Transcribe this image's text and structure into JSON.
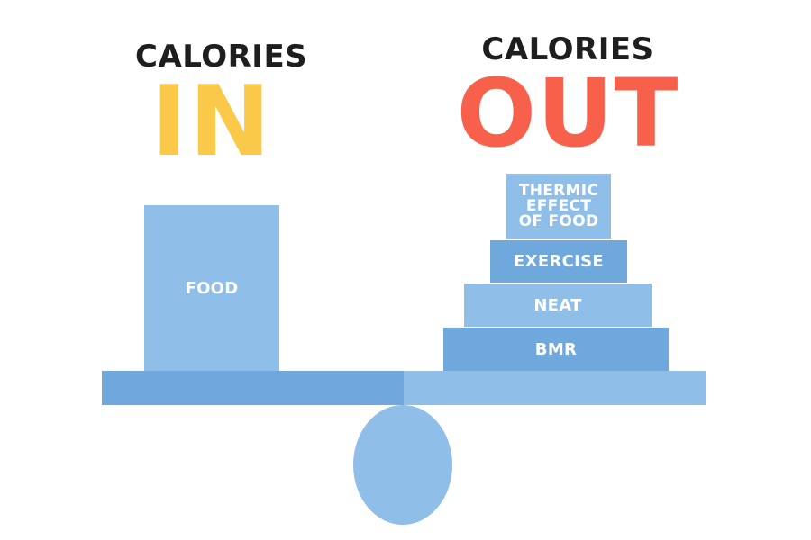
{
  "colors": {
    "in_accent": "#fbc94a",
    "out_accent": "#f7614c",
    "heading_dark": "#1e1e1e",
    "block_light": "#8fbee8",
    "block_mid": "#6fa8dc"
  },
  "left": {
    "heading_small": "CALORIES",
    "heading_big": "IN",
    "block": "FOOD"
  },
  "right": {
    "heading_small": "CALORIES",
    "heading_big": "OUT",
    "stack": [
      {
        "label": "THERMIC EFFECT OF FOOD"
      },
      {
        "label": "EXERCISE"
      },
      {
        "label": "NEAT"
      },
      {
        "label": "BMR"
      }
    ]
  }
}
